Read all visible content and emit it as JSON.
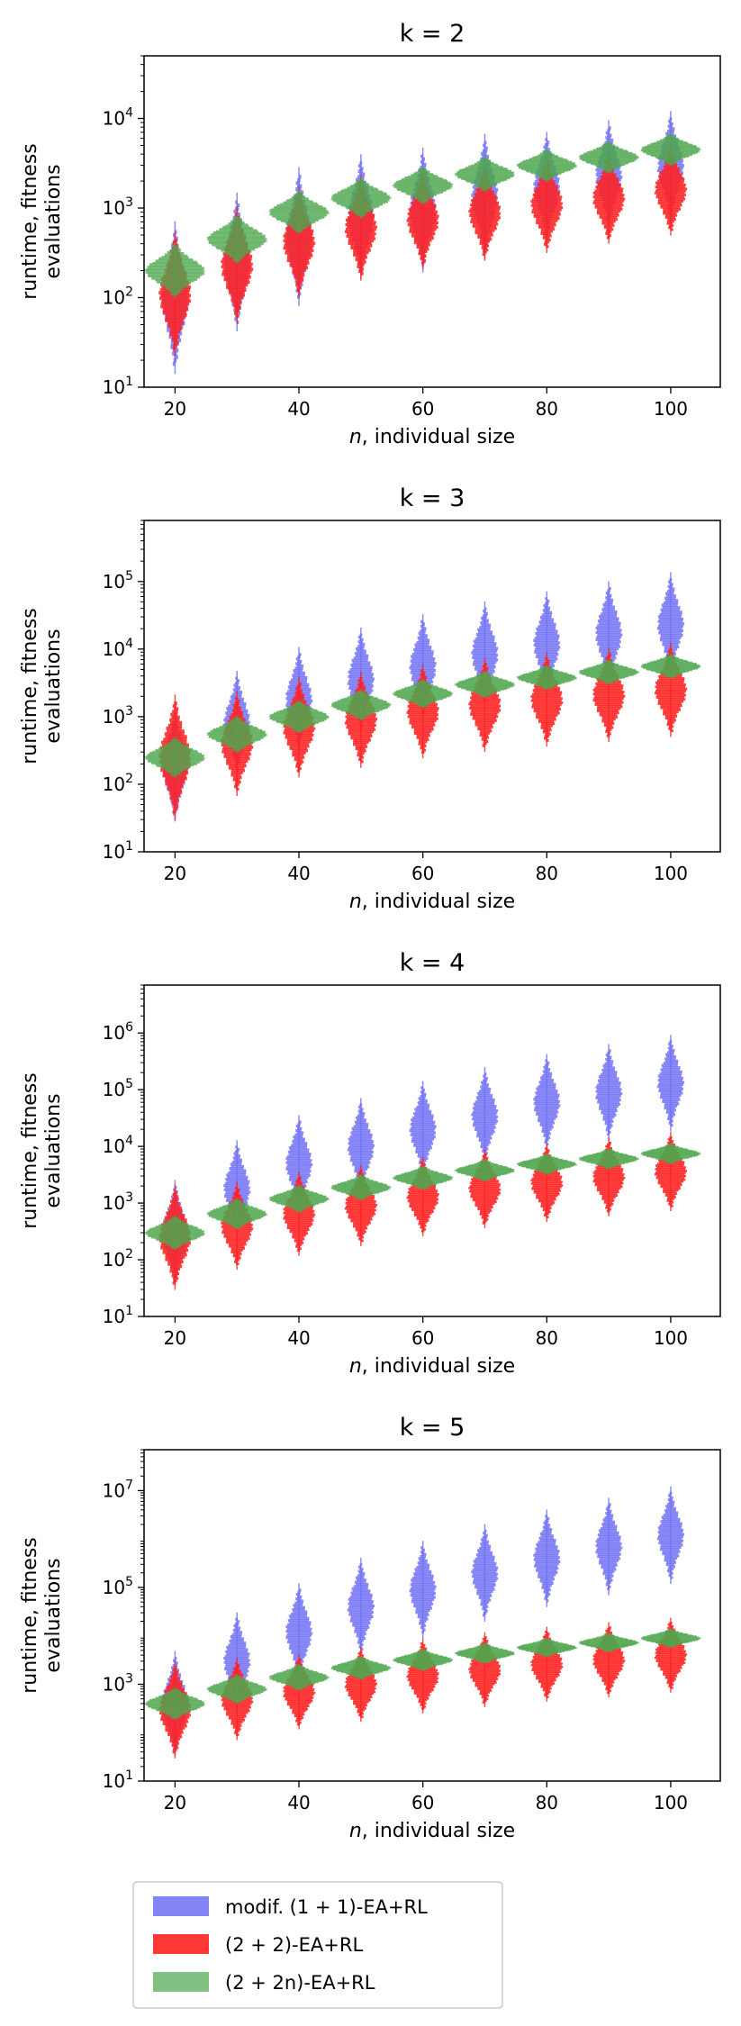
{
  "chart_data": [
    {
      "type": "violin",
      "title": "k = 2",
      "xlabel_italic": "n",
      "xlabel_rest": ", individual size",
      "ylabel_line1": "runtime, fitness",
      "ylabel_line2": "evaluations",
      "yscale": "log",
      "ylim": [
        10,
        50000
      ],
      "xlim": [
        15,
        108
      ],
      "xticks": [
        20,
        40,
        60,
        80,
        100
      ],
      "xtick_labels": [
        "20",
        "40",
        "60",
        "80",
        "100"
      ],
      "yticks": [
        {
          "exp": 1,
          "base": "10",
          "sup": "1"
        },
        {
          "exp": 2,
          "base": "10",
          "sup": "2"
        },
        {
          "exp": 3,
          "base": "10",
          "sup": "3"
        },
        {
          "exp": 4,
          "base": "10",
          "sup": "4"
        }
      ],
      "series": [
        {
          "name": "modif. (1+1)-EA+RL",
          "color": "#6f6ff5",
          "x": [
            20,
            30,
            40,
            50,
            60,
            70,
            80,
            90,
            100
          ],
          "median": [
            100,
            250,
            480,
            800,
            950,
            1350,
            1700,
            2300,
            2900
          ],
          "spread_decades": [
            0.55,
            0.5,
            0.5,
            0.45,
            0.45,
            0.45,
            0.4,
            0.4,
            0.4
          ]
        },
        {
          "name": "(2+2)-EA+RL",
          "color": "#ff2222",
          "x": [
            20,
            30,
            40,
            50,
            60,
            70,
            80,
            90,
            100
          ],
          "median": [
            110,
            230,
            420,
            600,
            750,
            900,
            1100,
            1300,
            1600
          ],
          "spread_decades": [
            0.45,
            0.42,
            0.4,
            0.38,
            0.36,
            0.35,
            0.35,
            0.33,
            0.33
          ]
        },
        {
          "name": "(2+2n)-EA+RL",
          "color": "#4ea64e",
          "x": [
            20,
            30,
            40,
            50,
            60,
            70,
            80,
            90,
            100
          ],
          "median": [
            200,
            450,
            900,
            1300,
            1800,
            2400,
            3000,
            3700,
            4500
          ],
          "spread_decades": [
            0.2,
            0.18,
            0.16,
            0.15,
            0.14,
            0.13,
            0.12,
            0.12,
            0.12
          ]
        }
      ]
    },
    {
      "type": "violin",
      "title": "k = 3",
      "xlabel_italic": "n",
      "xlabel_rest": ", individual size",
      "ylabel_line1": "runtime, fitness",
      "ylabel_line2": "evaluations",
      "yscale": "log",
      "ylim": [
        10,
        800000
      ],
      "xlim": [
        15,
        108
      ],
      "xticks": [
        20,
        40,
        60,
        80,
        100
      ],
      "xtick_labels": [
        "20",
        "40",
        "60",
        "80",
        "100"
      ],
      "yticks": [
        {
          "exp": 1,
          "base": "10",
          "sup": "1"
        },
        {
          "exp": 2,
          "base": "10",
          "sup": "2"
        },
        {
          "exp": 3,
          "base": "10",
          "sup": "3"
        },
        {
          "exp": 4,
          "base": "10",
          "sup": "4"
        },
        {
          "exp": 5,
          "base": "10",
          "sup": "5"
        }
      ],
      "series": [
        {
          "name": "modif. (1+1)-EA+RL",
          "color": "#6f6ff5",
          "x": [
            20,
            30,
            40,
            50,
            60,
            70,
            80,
            90,
            100
          ],
          "median": [
            200,
            800,
            1800,
            3500,
            5500,
            8500,
            12000,
            17000,
            23000
          ],
          "spread_decades": [
            0.55,
            0.5,
            0.5,
            0.5,
            0.5,
            0.5,
            0.5,
            0.5,
            0.5
          ]
        },
        {
          "name": "(2+2)-EA+RL",
          "color": "#ff2222",
          "x": [
            20,
            30,
            40,
            50,
            60,
            70,
            80,
            90,
            100
          ],
          "median": [
            250,
            400,
            700,
            900,
            1200,
            1500,
            1800,
            2100,
            2500
          ],
          "spread_decades": [
            0.6,
            0.5,
            0.48,
            0.46,
            0.45,
            0.45,
            0.45,
            0.45,
            0.45
          ]
        },
        {
          "name": "(2+2n)-EA+RL",
          "color": "#4ea64e",
          "x": [
            20,
            30,
            40,
            50,
            60,
            70,
            80,
            90,
            100
          ],
          "median": [
            250,
            550,
            1000,
            1500,
            2200,
            3000,
            3800,
            4600,
            5600
          ],
          "spread_decades": [
            0.2,
            0.18,
            0.16,
            0.15,
            0.14,
            0.13,
            0.12,
            0.12,
            0.12
          ]
        }
      ]
    },
    {
      "type": "violin",
      "title": "k = 4",
      "xlabel_italic": "n",
      "xlabel_rest": ", individual size",
      "ylabel_line1": "runtime, fitness",
      "ylabel_line2": "evaluations",
      "yscale": "log",
      "ylim": [
        10,
        7000000
      ],
      "xlim": [
        15,
        108
      ],
      "xticks": [
        20,
        40,
        60,
        80,
        100
      ],
      "xtick_labels": [
        "20",
        "40",
        "60",
        "80",
        "100"
      ],
      "yticks": [
        {
          "exp": 1,
          "base": "10",
          "sup": "1"
        },
        {
          "exp": 2,
          "base": "10",
          "sup": "2"
        },
        {
          "exp": 3,
          "base": "10",
          "sup": "3"
        },
        {
          "exp": 4,
          "base": "10",
          "sup": "4"
        },
        {
          "exp": 5,
          "base": "10",
          "sup": "5"
        },
        {
          "exp": 6,
          "base": "10",
          "sup": "6"
        }
      ],
      "series": [
        {
          "name": "modif. (1+1)-EA+RL",
          "color": "#6f6ff5",
          "x": [
            20,
            30,
            40,
            50,
            60,
            70,
            80,
            90,
            100
          ],
          "median": [
            300,
            1800,
            5000,
            10000,
            20000,
            35000,
            60000,
            90000,
            130000
          ],
          "spread_decades": [
            0.6,
            0.55,
            0.55,
            0.55,
            0.55,
            0.55,
            0.55,
            0.55,
            0.55
          ]
        },
        {
          "name": "(2+2)-EA+RL",
          "color": "#ff2222",
          "x": [
            20,
            30,
            40,
            50,
            60,
            70,
            80,
            90,
            100
          ],
          "median": [
            250,
            400,
            650,
            900,
            1300,
            1800,
            2300,
            2900,
            3600
          ],
          "spread_decades": [
            0.6,
            0.5,
            0.48,
            0.46,
            0.45,
            0.45,
            0.45,
            0.45,
            0.45
          ]
        },
        {
          "name": "(2+2n)-EA+RL",
          "color": "#4ea64e",
          "x": [
            20,
            30,
            40,
            50,
            60,
            70,
            80,
            90,
            100
          ],
          "median": [
            300,
            650,
            1200,
            1900,
            2800,
            3800,
            4900,
            6100,
            7500
          ],
          "spread_decades": [
            0.2,
            0.18,
            0.16,
            0.15,
            0.14,
            0.13,
            0.12,
            0.12,
            0.12
          ]
        }
      ]
    },
    {
      "type": "violin",
      "title": "k = 5",
      "xlabel_italic": "n",
      "xlabel_rest": ", individual size",
      "ylabel_line1": "runtime, fitness",
      "ylabel_line2": "evaluations",
      "yscale": "log",
      "ylim": [
        10,
        70000000
      ],
      "xlim": [
        15,
        108
      ],
      "xticks": [
        20,
        40,
        60,
        80,
        100
      ],
      "xtick_labels": [
        "20",
        "40",
        "60",
        "80",
        "100"
      ],
      "yticks": [
        {
          "exp": 1,
          "base": "10",
          "sup": "1"
        },
        {
          "exp": 3,
          "base": "10",
          "sup": "3"
        },
        {
          "exp": 5,
          "base": "10",
          "sup": "5"
        },
        {
          "exp": 7,
          "base": "10",
          "sup": "7"
        }
      ],
      "series": [
        {
          "name": "modif. (1+1)-EA+RL",
          "color": "#6f6ff5",
          "x": [
            20,
            30,
            40,
            50,
            60,
            70,
            80,
            90,
            100
          ],
          "median": [
            400,
            3000,
            12000,
            40000,
            90000,
            200000,
            400000,
            700000,
            1200000
          ],
          "spread_decades": [
            0.7,
            0.65,
            0.65,
            0.65,
            0.65,
            0.65,
            0.65,
            0.65,
            0.65
          ]
        },
        {
          "name": "(2+2)-EA+RL",
          "color": "#ff2222",
          "x": [
            20,
            30,
            40,
            50,
            60,
            70,
            80,
            90,
            100
          ],
          "median": [
            300,
            500,
            700,
            1000,
            1500,
            2000,
            2600,
            3200,
            4000
          ],
          "spread_decades": [
            0.65,
            0.55,
            0.5,
            0.5,
            0.5,
            0.5,
            0.5,
            0.5,
            0.5
          ]
        },
        {
          "name": "(2+2n)-EA+RL",
          "color": "#4ea64e",
          "x": [
            20,
            30,
            40,
            50,
            60,
            70,
            80,
            90,
            100
          ],
          "median": [
            400,
            800,
            1400,
            2200,
            3200,
            4400,
            5800,
            7300,
            9000
          ],
          "spread_decades": [
            0.22,
            0.2,
            0.18,
            0.16,
            0.15,
            0.14,
            0.13,
            0.13,
            0.13
          ]
        }
      ]
    }
  ],
  "legend": [
    {
      "label": "modif. (1 + 1)-EA+RL",
      "color": "#6f6ff5"
    },
    {
      "label": "(2 + 2)-EA+RL",
      "color": "#ff2222"
    },
    {
      "label": "(2 + 2n)-EA+RL",
      "color": "#4ea64e"
    }
  ]
}
